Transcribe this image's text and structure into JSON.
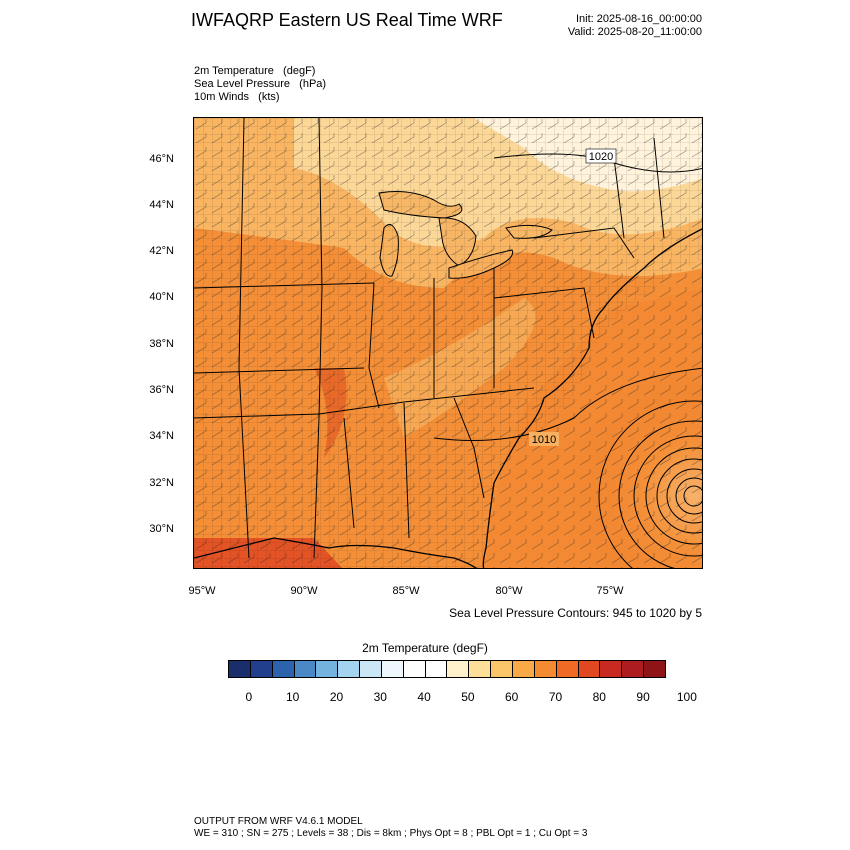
{
  "header": {
    "title": "IWFAQRP Eastern US Real Time WRF",
    "init": "Init: 2025-08-16_00:00:00",
    "valid": "Valid: 2025-08-20_11:00:00"
  },
  "fields": [
    "2m Temperature   (degF)",
    "Sea Level Pressure   (hPa)",
    "10m Winds   (kts)"
  ],
  "map": {
    "lat_labels": [
      "46°N",
      "44°N",
      "42°N",
      "40°N",
      "38°N",
      "36°N",
      "34°N",
      "32°N",
      "30°N"
    ],
    "lon_labels": [
      "95°W",
      "90°W",
      "85°W",
      "80°W",
      "75°W"
    ],
    "contour_labels": [
      "1020",
      "1010"
    ],
    "contour_note": "Sea Level Pressure Contours: 945 to 1020 by 5"
  },
  "colorbar": {
    "title": "2m Temperature  (degF)",
    "tick_labels": [
      "0",
      "10",
      "20",
      "30",
      "40",
      "50",
      "60",
      "70",
      "80",
      "90",
      "100"
    ],
    "colors": [
      "#1a2e6c",
      "#213f8c",
      "#2d62ad",
      "#4a88c6",
      "#74b3de",
      "#a3d3ef",
      "#cbe7f6",
      "#eef7fb",
      "#ffffff",
      "#ffffff",
      "#fff0cc",
      "#fddf99",
      "#fbc56a",
      "#f8aa47",
      "#f48b30",
      "#ee6a25",
      "#e04822",
      "#c82a22",
      "#ad1c1f",
      "#8e1417"
    ]
  },
  "footer": {
    "line1": "OUTPUT FROM WRF V4.6.1 MODEL",
    "line2": "WE = 310 ; SN = 275 ; Levels = 38 ; Dis = 8km ; Phys Opt = 8 ; PBL Opt = 1 ; Cu Opt = 3"
  }
}
